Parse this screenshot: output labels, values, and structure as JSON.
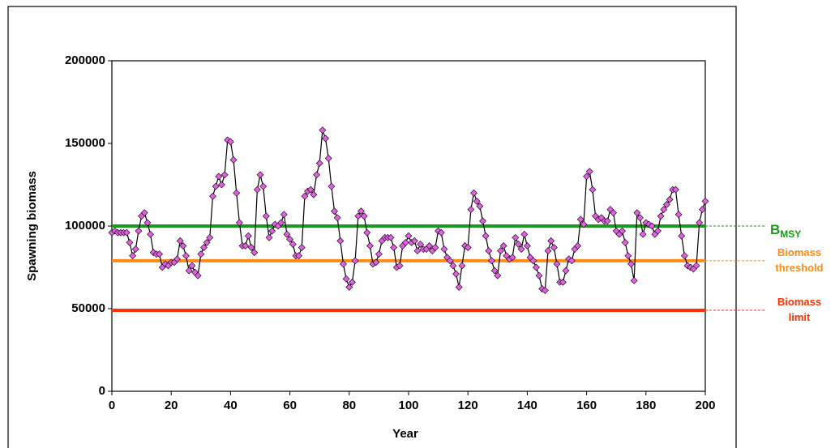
{
  "chart_data": {
    "type": "line",
    "x_label": "Year",
    "y_label": "Spawning  biomass",
    "xlim": [
      0,
      200
    ],
    "xticks": [
      0,
      20,
      40,
      60,
      80,
      100,
      120,
      140,
      160,
      180,
      200
    ],
    "ylim": [
      0,
      200000
    ],
    "yticks": [
      0,
      50000,
      100000,
      150000,
      200000
    ],
    "x": [
      0,
      1,
      2,
      3,
      4,
      5,
      6,
      7,
      8,
      9,
      10,
      11,
      12,
      13,
      14,
      15,
      16,
      17,
      18,
      19,
      20,
      21,
      22,
      23,
      24,
      25,
      26,
      27,
      28,
      29,
      30,
      31,
      32,
      33,
      34,
      35,
      36,
      37,
      38,
      39,
      40,
      41,
      42,
      43,
      44,
      45,
      46,
      47,
      48,
      49,
      50,
      51,
      52,
      53,
      54,
      55,
      56,
      57,
      58,
      59,
      60,
      61,
      62,
      63,
      64,
      65,
      66,
      67,
      68,
      69,
      70,
      71,
      72,
      73,
      74,
      75,
      76,
      77,
      78,
      79,
      80,
      81,
      82,
      83,
      84,
      85,
      86,
      87,
      88,
      89,
      90,
      91,
      92,
      93,
      94,
      95,
      96,
      97,
      98,
      99,
      100,
      101,
      102,
      103,
      104,
      105,
      106,
      107,
      108,
      109,
      110,
      111,
      112,
      113,
      114,
      115,
      116,
      117,
      118,
      119,
      120,
      121,
      122,
      123,
      124,
      125,
      126,
      127,
      128,
      129,
      130,
      131,
      132,
      133,
      134,
      135,
      136,
      137,
      138,
      139,
      140,
      141,
      142,
      143,
      144,
      145,
      146,
      147,
      148,
      149,
      150,
      151,
      152,
      153,
      154,
      155,
      156,
      157,
      158,
      159,
      160,
      161,
      162,
      163,
      164,
      165,
      166,
      167,
      168,
      169,
      170,
      171,
      172,
      173,
      174,
      175,
      176,
      177,
      178,
      179,
      180,
      181,
      182,
      183,
      184,
      185,
      186,
      187,
      188,
      189,
      190,
      191,
      192,
      193,
      194,
      195,
      196,
      197,
      198,
      199,
      200
    ],
    "series": [
      {
        "line_color": "#000000",
        "marker_color": "#e060e0",
        "values": [
          96000,
          97000,
          96000,
          96000,
          96000,
          96000,
          90000,
          82000,
          86000,
          97000,
          106000,
          108000,
          102000,
          95000,
          84000,
          83000,
          83000,
          75000,
          77000,
          76000,
          78000,
          78000,
          80000,
          91000,
          88000,
          82000,
          73000,
          76000,
          72000,
          70000,
          83000,
          87000,
          90000,
          93000,
          118000,
          124000,
          130000,
          125000,
          131000,
          152000,
          151000,
          140000,
          120000,
          102000,
          88000,
          88000,
          94000,
          87000,
          84000,
          122000,
          131000,
          124000,
          106000,
          93000,
          97000,
          101000,
          100000,
          102000,
          107000,
          95000,
          92000,
          89000,
          82000,
          82000,
          87000,
          118000,
          121000,
          122000,
          119000,
          131000,
          138000,
          158000,
          153000,
          141000,
          124000,
          109000,
          105000,
          91000,
          77000,
          68000,
          63000,
          66000,
          79000,
          106000,
          109000,
          106000,
          96000,
          88000,
          77000,
          78000,
          83000,
          91000,
          93000,
          93000,
          93000,
          87000,
          75000,
          76000,
          88000,
          90000,
          94000,
          90000,
          91000,
          85000,
          89000,
          86000,
          86000,
          88000,
          85000,
          87000,
          97000,
          96000,
          86000,
          81000,
          79000,
          76000,
          71000,
          63000,
          76000,
          88000,
          87000,
          110000,
          120000,
          115000,
          112000,
          103000,
          94000,
          85000,
          79000,
          73000,
          70000,
          85000,
          88000,
          82000,
          80000,
          81000,
          93000,
          89000,
          86000,
          95000,
          88000,
          81000,
          79000,
          75000,
          70000,
          62000,
          61000,
          85000,
          91000,
          87000,
          77000,
          66000,
          66000,
          73000,
          80000,
          79000,
          86000,
          88000,
          104000,
          101000,
          130000,
          133000,
          122000,
          106000,
          104000,
          105000,
          103000,
          103000,
          110000,
          108000,
          97000,
          95000,
          97000,
          90000,
          82000,
          77000,
          67000,
          108000,
          105000,
          95000,
          102000,
          101000,
          100000,
          95000,
          97000,
          106000,
          110000,
          113000,
          116000,
          122000,
          122000,
          107000,
          94000,
          82000,
          76000,
          75000,
          74000,
          76000,
          102000,
          110000,
          115000
        ]
      }
    ],
    "reference_lines": [
      {
        "value": 100000,
        "color": "#1a9a1a",
        "label": [
          "B"
        ],
        "label_sub": "MSY"
      },
      {
        "value": 79000,
        "color": "#ff8c1a",
        "label": [
          "Biomass",
          "threshold"
        ]
      },
      {
        "value": 49000,
        "color": "#ff3300",
        "label": [
          "Biomass",
          "limit"
        ]
      }
    ]
  }
}
